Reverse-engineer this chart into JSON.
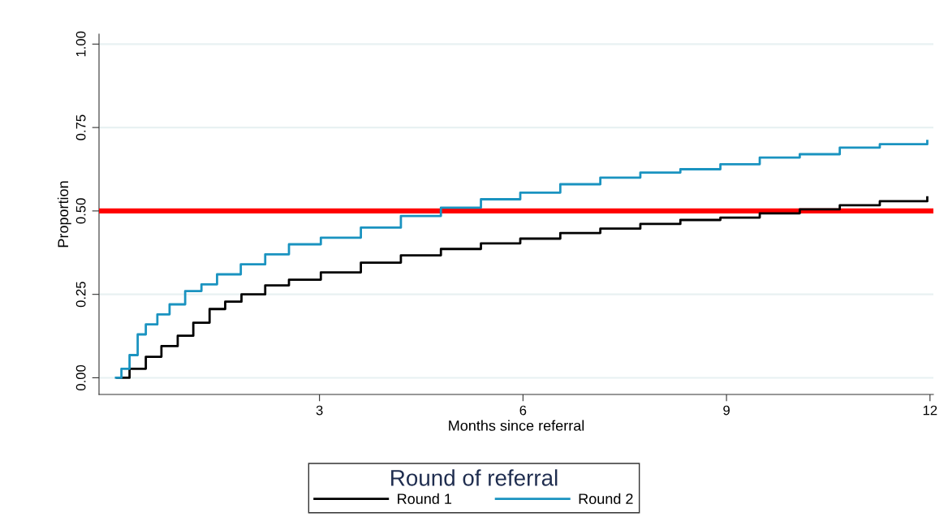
{
  "chart_data": {
    "type": "step",
    "xlabel": "Months since referral",
    "ylabel": "Proportion",
    "legend_title": "Round of referral",
    "legend": "bottom",
    "grid": "y",
    "xlim": [
      -0.25,
      12.05
    ],
    "xticks": [
      3,
      6,
      9,
      12
    ],
    "ylim": [
      -0.05,
      1.03
    ],
    "yticks": [
      {
        "value": 0,
        "label": "0.00"
      },
      {
        "value": 0.25,
        "label": "0.25"
      },
      {
        "value": 0.5,
        "label": "0.50"
      },
      {
        "value": 0.75,
        "label": "0.75"
      },
      {
        "value": 1,
        "label": "1.00"
      }
    ],
    "ref_lines": [
      {
        "axis": "y",
        "value": 0.5,
        "label": null,
        "color": "#ff0000"
      }
    ],
    "series": [
      {
        "name": "Round 1",
        "color": "#000000",
        "x": [
          0.02,
          0.2,
          0.44,
          0.67,
          0.91,
          1.14,
          1.38,
          1.61,
          1.85,
          2.2,
          2.55,
          3.02,
          3.61,
          4.2,
          4.79,
          5.38,
          5.96,
          6.55,
          7.14,
          7.73,
          8.32,
          8.91,
          9.49,
          10.08,
          10.67,
          11.26,
          11.96
        ],
        "values": [
          0,
          0.027,
          0.063,
          0.095,
          0.126,
          0.165,
          0.206,
          0.228,
          0.25,
          0.277,
          0.294,
          0.316,
          0.345,
          0.367,
          0.386,
          0.403,
          0.417,
          0.434,
          0.447,
          0.461,
          0.473,
          0.48,
          0.493,
          0.505,
          0.517,
          0.529,
          0.541
        ]
      },
      {
        "name": "Round 2",
        "color": "#1a93c0",
        "x": [
          0,
          0.08,
          0.2,
          0.32,
          0.44,
          0.61,
          0.79,
          1.02,
          1.26,
          1.49,
          1.84,
          2.2,
          2.55,
          3.02,
          3.61,
          4.2,
          4.79,
          5.38,
          5.96,
          6.55,
          7.14,
          7.73,
          8.32,
          8.91,
          9.49,
          10.08,
          10.67,
          11.26,
          11.96
        ],
        "values": [
          0,
          0.027,
          0.068,
          0.13,
          0.16,
          0.19,
          0.22,
          0.26,
          0.28,
          0.31,
          0.34,
          0.37,
          0.4,
          0.42,
          0.45,
          0.485,
          0.51,
          0.535,
          0.555,
          0.58,
          0.6,
          0.615,
          0.625,
          0.64,
          0.66,
          0.67,
          0.69,
          0.7,
          0.71
        ]
      }
    ]
  }
}
